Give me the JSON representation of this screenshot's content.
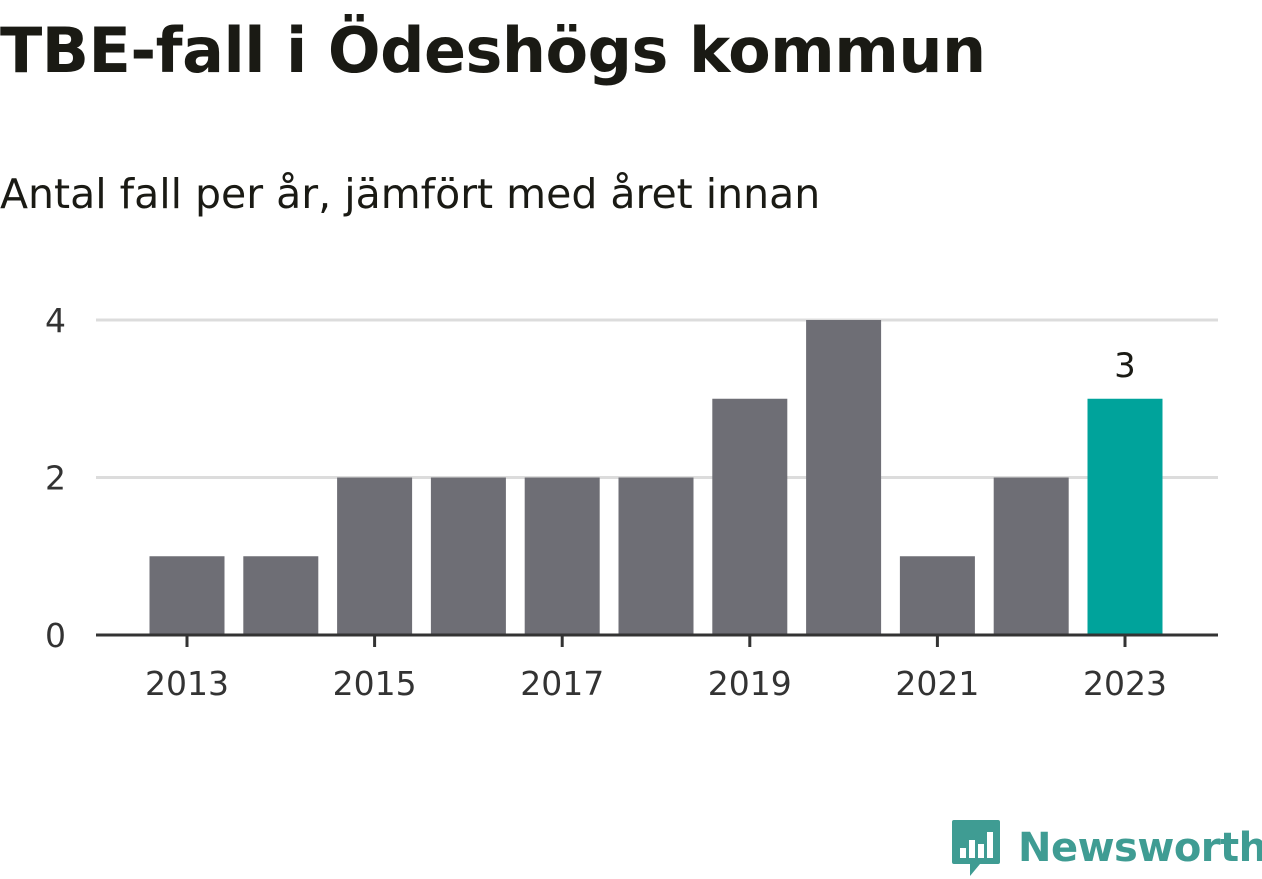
{
  "chart_data": {
    "type": "bar",
    "title": "TBE-fall i Ödeshögs kommun",
    "subtitle": "Antal fall per år, jämfört med året innan",
    "categories": [
      "2013",
      "2014",
      "2015",
      "2016",
      "2017",
      "2018",
      "2019",
      "2020",
      "2021",
      "2022",
      "2023"
    ],
    "values": [
      1,
      1,
      2,
      2,
      2,
      2,
      3,
      4,
      1,
      2,
      3
    ],
    "x_tick_labels": [
      "2013",
      "2015",
      "2017",
      "2019",
      "2021",
      "2023"
    ],
    "y_ticks": [
      0,
      2,
      4
    ],
    "ylim": [
      0,
      4
    ],
    "xlabel": "",
    "ylabel": "",
    "grid": true,
    "highlight_index": 10,
    "highlight_label": "3",
    "colors": {
      "bar": "#6e6e75",
      "highlight": "#00a39b",
      "grid": "#dcdcdc",
      "axis": "#333333"
    }
  },
  "brand": {
    "name": "Newsworthy",
    "color": "#3f9c93",
    "icon": "bar-chart-speech-icon"
  }
}
